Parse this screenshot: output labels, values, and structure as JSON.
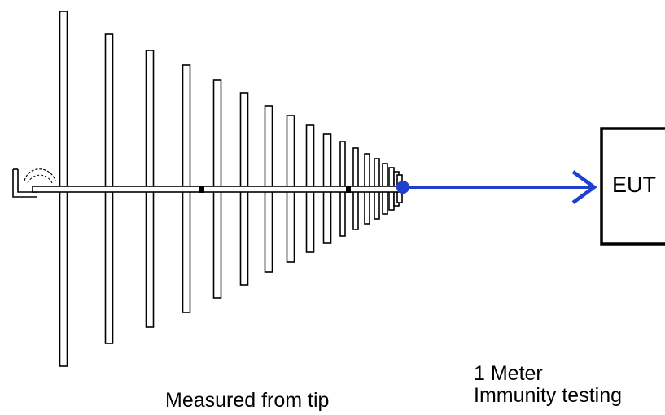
{
  "diagram": {
    "eut_label": "EUT",
    "tip_note": "Measured from tip",
    "distance_label": "1 Meter",
    "test_label": "Immunity testing"
  },
  "colors": {
    "beam_arrow": "#1f3fd0",
    "lines": "#000000",
    "background": "#ffffff"
  },
  "icons": {
    "antenna": "log-periodic-antenna-icon",
    "arrow": "arrow-right-icon"
  }
}
